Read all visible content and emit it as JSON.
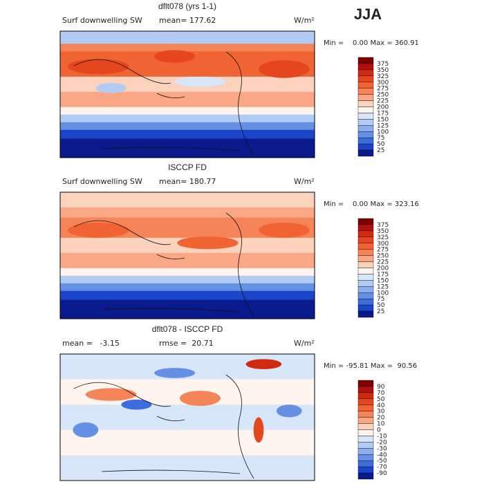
{
  "season": "JJA",
  "panels": [
    {
      "title": "dflt078 (yrs 1-1)",
      "field": "Surf downwelling SW",
      "stat": "mean= 177.62",
      "units": "W/m²",
      "range": "Min =    0.00 Max = 360.91",
      "levels": [
        375,
        350,
        325,
        300,
        275,
        250,
        225,
        200,
        175,
        150,
        125,
        100,
        75,
        50,
        25
      ]
    },
    {
      "title": "ISCCP FD",
      "field": "Surf downwelling SW",
      "stat": "mean= 180.77",
      "units": "W/m²",
      "range": "Min =    0.00 Max = 323.16",
      "levels": [
        375,
        350,
        325,
        300,
        275,
        250,
        225,
        200,
        175,
        150,
        125,
        100,
        75,
        50,
        25
      ]
    },
    {
      "title": "dflt078 - ISCCP FD",
      "field": "mean =   -3.15",
      "stat": "rmse =  20.71",
      "units": "W/m²",
      "range": "Min = -95.81 Max =  90.56",
      "levels": [
        90,
        70,
        50,
        40,
        30,
        20,
        10,
        0,
        -10,
        -20,
        -30,
        -40,
        -50,
        -70,
        -90
      ]
    }
  ],
  "colors": [
    "#800000",
    "#b01010",
    "#d02a10",
    "#e5461e",
    "#f06433",
    "#f58458",
    "#f9a784",
    "#fdd2bd",
    "#fff4ee",
    "#d8e6fa",
    "#b2cbf3",
    "#8caeec",
    "#6590e3",
    "#3d6ddb",
    "#1a45c8",
    "#0a1a8c"
  ]
}
